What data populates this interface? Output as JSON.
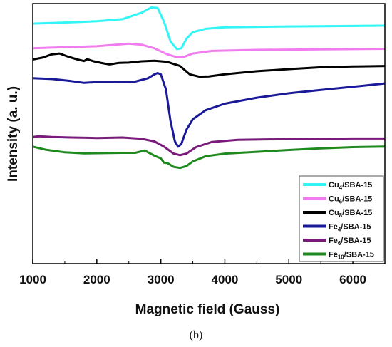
{
  "chart_data": {
    "type": "line",
    "title": "",
    "xlabel": "Magnetic field (Gauss)",
    "ylabel": "Intensity (a. u.)",
    "xlim": [
      1000,
      6500
    ],
    "ylim": [
      0,
      100
    ],
    "x_ticks": [
      "1000",
      "2000",
      "3000",
      "4000",
      "5000",
      "6000"
    ],
    "y_ticks_shown": false,
    "legend_position": "bottom-right",
    "series": [
      {
        "name": "Cu4/SBA-15",
        "label_main": "Cu",
        "label_sub": "4",
        "label_rest": "/SBA-15",
        "color": "#33f5f5",
        "points": [
          [
            1000,
            92.3
          ],
          [
            1500,
            92.7
          ],
          [
            2000,
            93.2
          ],
          [
            2400,
            94.0
          ],
          [
            2700,
            96.5
          ],
          [
            2850,
            98.5
          ],
          [
            2950,
            98.3
          ],
          [
            3050,
            93.0
          ],
          [
            3150,
            85.5
          ],
          [
            3250,
            82.5
          ],
          [
            3320,
            82.8
          ],
          [
            3400,
            86.5
          ],
          [
            3500,
            89.0
          ],
          [
            3700,
            90.3
          ],
          [
            4000,
            90.9
          ],
          [
            5000,
            91.2
          ],
          [
            6000,
            91.4
          ],
          [
            6500,
            91.5
          ]
        ]
      },
      {
        "name": "Cu6/SBA-15",
        "label_main": "Cu",
        "label_sub": "6",
        "label_rest": "/SBA-15",
        "color": "#f07cf0",
        "points": [
          [
            1000,
            82.8
          ],
          [
            1500,
            83.2
          ],
          [
            2000,
            83.6
          ],
          [
            2500,
            84.6
          ],
          [
            2700,
            84.2
          ],
          [
            2900,
            82.8
          ],
          [
            3100,
            80.5
          ],
          [
            3250,
            79.4
          ],
          [
            3350,
            79.4
          ],
          [
            3500,
            80.8
          ],
          [
            3800,
            81.8
          ],
          [
            4500,
            82.2
          ],
          [
            5500,
            82.4
          ],
          [
            6500,
            82.6
          ]
        ]
      },
      {
        "name": "Cu8/SBA-15",
        "label_main": "Cu",
        "label_sub": "8",
        "label_rest": "/SBA-15",
        "color": "#000000",
        "points": [
          [
            1000,
            78.5
          ],
          [
            1150,
            79.2
          ],
          [
            1300,
            80.5
          ],
          [
            1420,
            80.8
          ],
          [
            1550,
            79.6
          ],
          [
            1700,
            78.5
          ],
          [
            1800,
            77.9
          ],
          [
            1850,
            78.6
          ],
          [
            1950,
            77.8
          ],
          [
            2100,
            77.0
          ],
          [
            2200,
            76.6
          ],
          [
            2350,
            77.2
          ],
          [
            2500,
            77.3
          ],
          [
            2700,
            77.8
          ],
          [
            2900,
            78.0
          ],
          [
            3100,
            77.6
          ],
          [
            3300,
            76.0
          ],
          [
            3450,
            72.8
          ],
          [
            3600,
            71.9
          ],
          [
            3750,
            72.0
          ],
          [
            4000,
            72.8
          ],
          [
            4500,
            74.0
          ],
          [
            5000,
            74.8
          ],
          [
            5500,
            75.5
          ],
          [
            6000,
            75.8
          ],
          [
            6500,
            76.0
          ]
        ]
      },
      {
        "name": "Fe4/SBA-15",
        "label_main": "Fe",
        "label_sub": "4",
        "label_rest": "/SBA-15",
        "color": "#1a1a99",
        "points": [
          [
            1000,
            71.3
          ],
          [
            1300,
            71.0
          ],
          [
            1600,
            70.2
          ],
          [
            1800,
            69.5
          ],
          [
            2000,
            69.8
          ],
          [
            2300,
            69.8
          ],
          [
            2600,
            70.0
          ],
          [
            2800,
            71.3
          ],
          [
            2900,
            72.8
          ],
          [
            2950,
            73.3
          ],
          [
            3000,
            72.8
          ],
          [
            3080,
            67.0
          ],
          [
            3150,
            55.0
          ],
          [
            3220,
            47.0
          ],
          [
            3270,
            45.0
          ],
          [
            3320,
            46.0
          ],
          [
            3400,
            51.5
          ],
          [
            3500,
            55.5
          ],
          [
            3700,
            59.0
          ],
          [
            4000,
            61.5
          ],
          [
            4500,
            63.8
          ],
          [
            5000,
            65.5
          ],
          [
            5500,
            66.8
          ],
          [
            6000,
            68.0
          ],
          [
            6500,
            69.3
          ]
        ]
      },
      {
        "name": "Fe6/SBA-15",
        "label_main": "Fe",
        "label_sub": "6",
        "label_rest": "/SBA-15",
        "color": "#7a1a7a",
        "points": [
          [
            1000,
            48.7
          ],
          [
            1100,
            49.0
          ],
          [
            1300,
            48.7
          ],
          [
            1600,
            48.5
          ],
          [
            2000,
            48.3
          ],
          [
            2400,
            48.5
          ],
          [
            2700,
            48.0
          ],
          [
            2900,
            47.0
          ],
          [
            3050,
            45.0
          ],
          [
            3200,
            42.3
          ],
          [
            3300,
            41.7
          ],
          [
            3400,
            42.3
          ],
          [
            3550,
            44.8
          ],
          [
            3800,
            46.8
          ],
          [
            4200,
            47.6
          ],
          [
            5000,
            47.9
          ],
          [
            6000,
            48.1
          ],
          [
            6500,
            48.1
          ]
        ]
      },
      {
        "name": "Fe10/SBA-15",
        "label_main": "Fe",
        "label_sub": "10",
        "label_rest": "/SBA-15",
        "color": "#1e8a1e",
        "points": [
          [
            1000,
            45.0
          ],
          [
            1200,
            43.8
          ],
          [
            1500,
            42.8
          ],
          [
            1800,
            42.4
          ],
          [
            2100,
            42.5
          ],
          [
            2400,
            42.6
          ],
          [
            2600,
            42.6
          ],
          [
            2700,
            43.2
          ],
          [
            2750,
            43.5
          ],
          [
            2800,
            42.8
          ],
          [
            2900,
            41.5
          ],
          [
            3000,
            40.5
          ],
          [
            3050,
            38.8
          ],
          [
            3100,
            38.7
          ],
          [
            3200,
            37.2
          ],
          [
            3300,
            36.8
          ],
          [
            3400,
            37.5
          ],
          [
            3500,
            39.3
          ],
          [
            3700,
            41.3
          ],
          [
            4000,
            42.3
          ],
          [
            4500,
            43.0
          ],
          [
            5000,
            43.7
          ],
          [
            5500,
            44.3
          ],
          [
            6000,
            44.8
          ],
          [
            6500,
            45.0
          ]
        ]
      }
    ]
  },
  "caption": "(b)"
}
